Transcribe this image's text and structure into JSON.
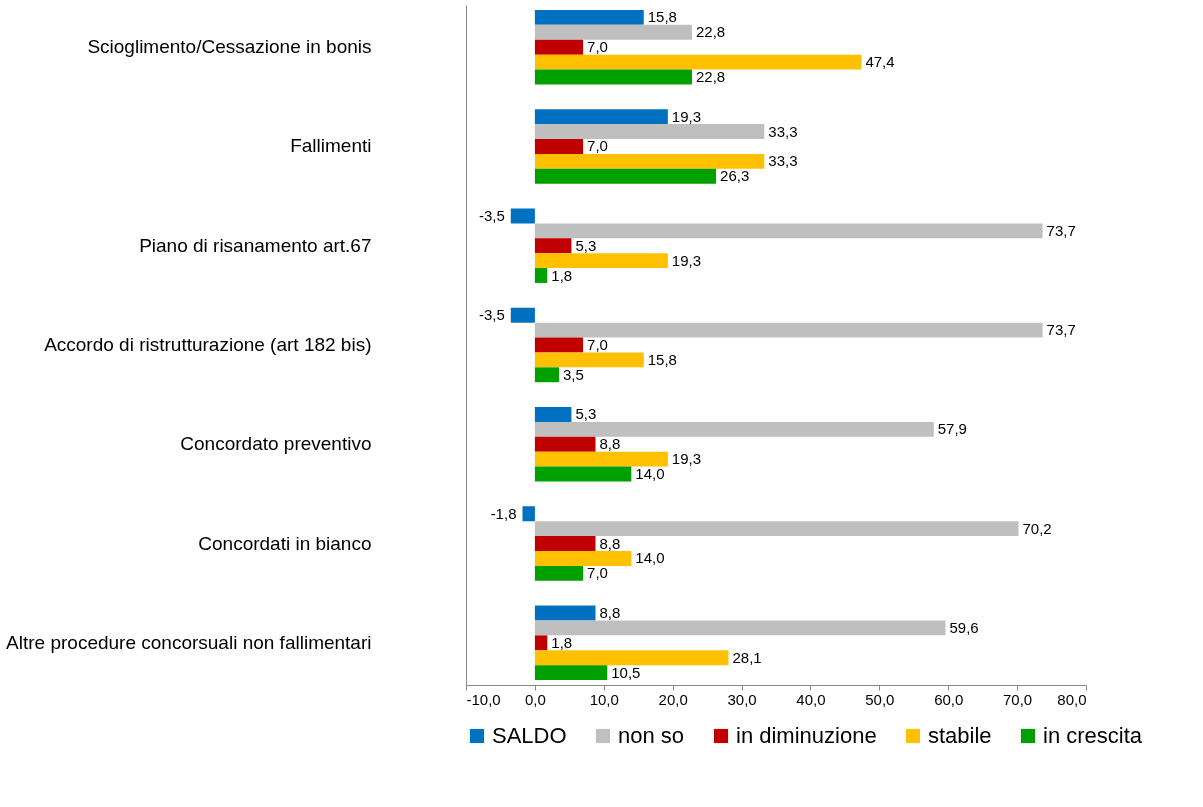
{
  "chart_data": {
    "type": "bar",
    "orientation": "horizontal",
    "categories": [
      "Scioglimento/Cessazione in bonis",
      "Fallimenti",
      "Piano di risanamento art.67",
      "Accordo di ristrutturazione (art 182 bis)",
      "Concordato preventivo",
      "Concordati in bianco",
      "Altre procedure concorsuali non fallimentari"
    ],
    "series": [
      {
        "name": "SALDO",
        "color": "#0070c0",
        "values": [
          15.8,
          19.3,
          -3.5,
          -3.5,
          5.3,
          -1.8,
          8.8
        ],
        "value_labels": [
          "15,8",
          "19,3",
          "-3,5",
          "-3,5",
          "5,3",
          "-1,8",
          "8,8"
        ]
      },
      {
        "name": "non so",
        "color": "#bfbfbf",
        "values": [
          22.8,
          33.3,
          73.7,
          73.7,
          57.9,
          70.2,
          59.6
        ],
        "value_labels": [
          "22,8",
          "33,3",
          "73,7",
          "73,7",
          "57,9",
          "70,2",
          "59,6"
        ]
      },
      {
        "name": "in diminuzione",
        "color": "#c00000",
        "values": [
          7.0,
          7.0,
          5.3,
          7.0,
          8.8,
          8.8,
          1.8
        ],
        "value_labels": [
          "7,0",
          "7,0",
          "5,3",
          "7,0",
          "8,8",
          "8,8",
          "1,8"
        ]
      },
      {
        "name": "stabile",
        "color": "#ffc000",
        "values": [
          47.4,
          33.3,
          19.3,
          15.8,
          19.3,
          14.0,
          28.1
        ],
        "value_labels": [
          "47,4",
          "33,3",
          "19,3",
          "15,8",
          "19,3",
          "14,0",
          "28,1"
        ]
      },
      {
        "name": "in crescita",
        "color": "#00a000",
        "values": [
          22.8,
          26.3,
          1.8,
          3.5,
          14.0,
          7.0,
          10.5
        ],
        "value_labels": [
          "22,8",
          "26,3",
          "1,8",
          "3,5",
          "14,0",
          "7,0",
          "10,5"
        ]
      }
    ],
    "xlim": [
      -10,
      80
    ],
    "xticks": [
      {
        "value": -10,
        "label": "-10,0"
      },
      {
        "value": 0,
        "label": "0,0"
      },
      {
        "value": 10,
        "label": "10,0"
      },
      {
        "value": 20,
        "label": "20,0"
      },
      {
        "value": 30,
        "label": "30,0"
      },
      {
        "value": 40,
        "label": "40,0"
      },
      {
        "value": 50,
        "label": "50,0"
      },
      {
        "value": 60,
        "label": "60,0"
      },
      {
        "value": 70,
        "label": "70,0"
      },
      {
        "value": 80,
        "label": "80,0"
      }
    ],
    "grid": false,
    "legend": "bottom"
  }
}
